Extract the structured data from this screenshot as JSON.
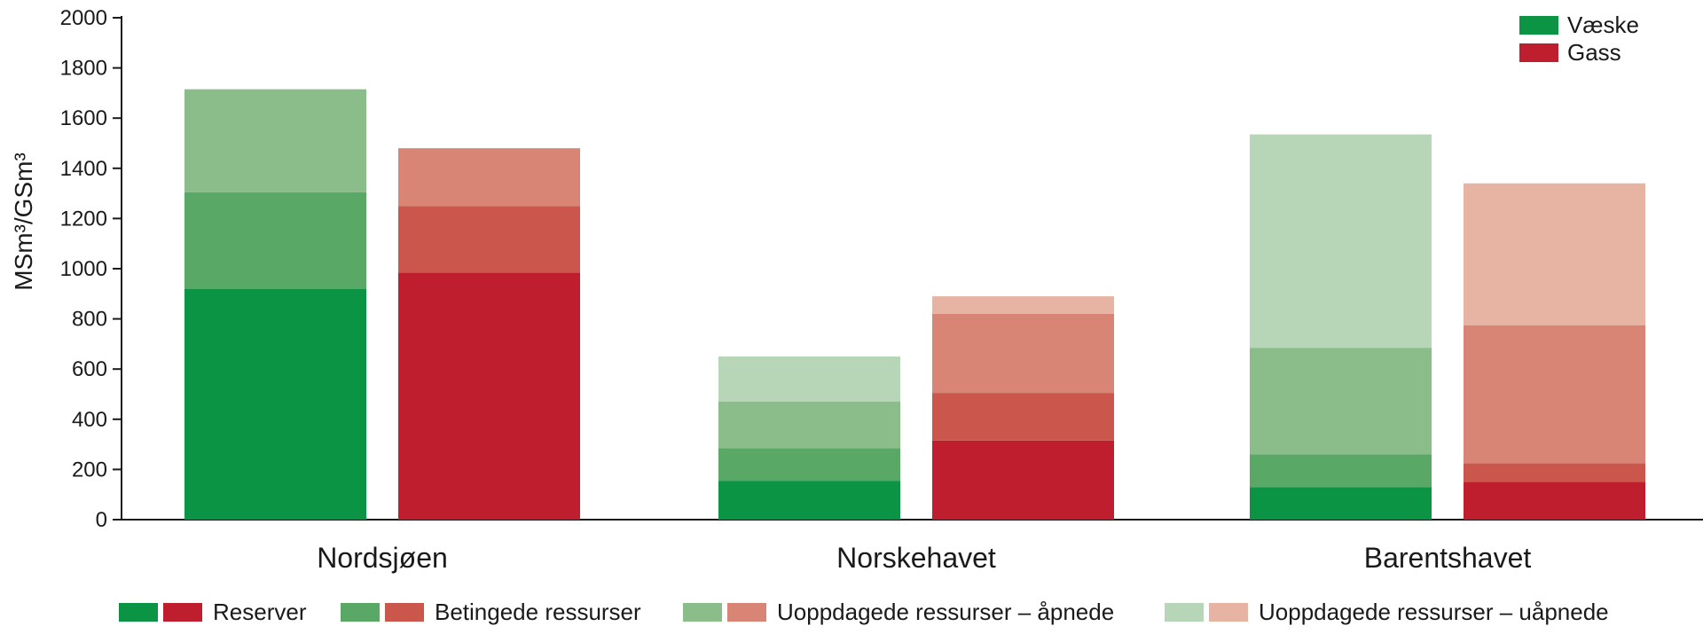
{
  "chart_data": {
    "type": "bar",
    "stacked": true,
    "grouped": true,
    "ylabel": "MSm³/GSm³",
    "xlabel": "",
    "ylim": [
      0,
      2000
    ],
    "yticks": [
      0,
      200,
      400,
      600,
      800,
      1000,
      1200,
      1400,
      1600,
      1800,
      2000
    ],
    "grid": false,
    "categories": [
      "Nordsjøen",
      "Norskehavet",
      "Barentshavet"
    ],
    "groups": [
      {
        "name": "Væske",
        "color": "#0b9444",
        "layer_colors": [
          "#0b9444",
          "#5aa866",
          "#8abd8a",
          "#b7d6b7"
        ]
      },
      {
        "name": "Gass",
        "color": "#be1e2d",
        "layer_colors": [
          "#be1e2d",
          "#cb574c",
          "#d98575",
          "#e7b3a3"
        ]
      }
    ],
    "layers": [
      "Reserver",
      "Betingede ressurser",
      "Uoppdagede ressurser – åpnede",
      "Uoppdagede ressurser – uåpnede"
    ],
    "values": {
      "Væske": [
        [
          920,
          385,
          410,
          0
        ],
        [
          155,
          130,
          185,
          180
        ],
        [
          130,
          130,
          425,
          850
        ]
      ],
      "Gass": [
        [
          985,
          265,
          230,
          0
        ],
        [
          315,
          190,
          315,
          70
        ],
        [
          150,
          75,
          550,
          565
        ]
      ]
    },
    "legend_top": {
      "placement": "top-right",
      "entries": [
        {
          "label": "Væske",
          "color": "#0b9444"
        },
        {
          "label": "Gass",
          "color": "#be1e2d"
        }
      ]
    },
    "legend_bottom": {
      "placement": "bottom",
      "entries": [
        {
          "label": "Reserver",
          "colors": [
            "#0b9444",
            "#be1e2d"
          ]
        },
        {
          "label": "Betingede ressurser",
          "colors": [
            "#5aa866",
            "#cb574c"
          ]
        },
        {
          "label": "Uoppdagede ressurser – åpnede",
          "colors": [
            "#8abd8a",
            "#d98575"
          ]
        },
        {
          "label": "Uoppdagede ressurser – uåpnede",
          "colors": [
            "#b7d6b7",
            "#e7b3a3"
          ]
        }
      ]
    }
  }
}
